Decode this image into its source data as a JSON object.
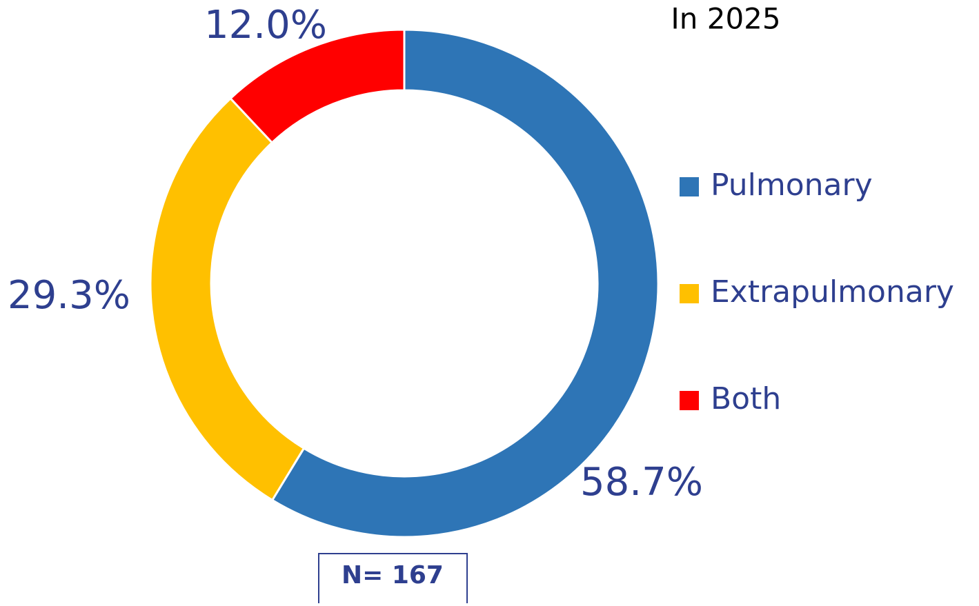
{
  "chart_data": {
    "type": "donut",
    "title": "In 2025",
    "categories": [
      "Pulmonary",
      "Extrapulmonary",
      "Both"
    ],
    "values": [
      58.7,
      29.3,
      12.0
    ],
    "value_labels": [
      "58.7%",
      "29.3%",
      "12.0%"
    ],
    "colors": [
      "#2e75b6",
      "#ffc000",
      "#ff0000"
    ],
    "legend": "right",
    "note": "N= 167"
  }
}
